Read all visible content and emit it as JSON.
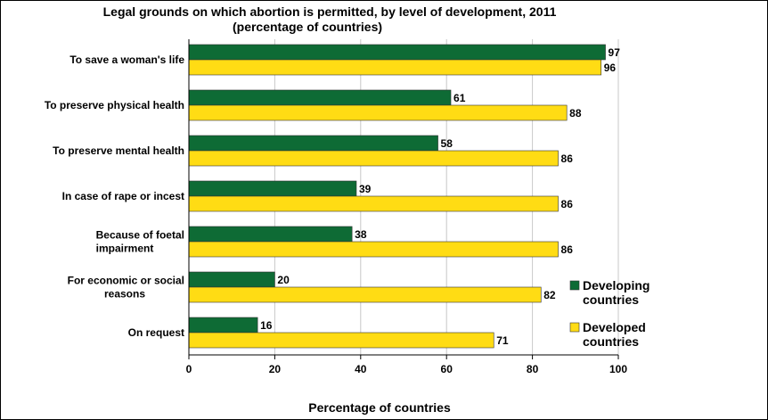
{
  "chart_data": {
    "type": "bar",
    "orientation": "horizontal",
    "title": "Legal grounds on which abortion is permitted, by level of development, 2011",
    "subtitle": "(percentage of countries)",
    "xlabel": "Percentage of countries",
    "ylabel": "",
    "xlim": [
      0,
      100
    ],
    "xticks": [
      "0",
      "20",
      "40",
      "60",
      "80",
      "100"
    ],
    "categories": [
      [
        "To save a woman's life"
      ],
      [
        "To preserve physical health"
      ],
      [
        "To preserve mental health"
      ],
      [
        "In case of rape or incest"
      ],
      [
        "Because of foetal",
        "impairment"
      ],
      [
        "For economic or social",
        "reasons"
      ],
      [
        "On request"
      ]
    ],
    "series": [
      {
        "name": "Developing countries",
        "legend_lines": [
          "Developing",
          "countries"
        ],
        "color": "#0e6b35",
        "values": [
          97,
          61,
          58,
          39,
          38,
          20,
          16
        ]
      },
      {
        "name": "Developed countries",
        "legend_lines": [
          "Developed",
          "countries"
        ],
        "color": "#ffdc14",
        "values": [
          96,
          88,
          86,
          86,
          86,
          82,
          71
        ]
      }
    ],
    "grid": true,
    "legend_position": "right"
  }
}
